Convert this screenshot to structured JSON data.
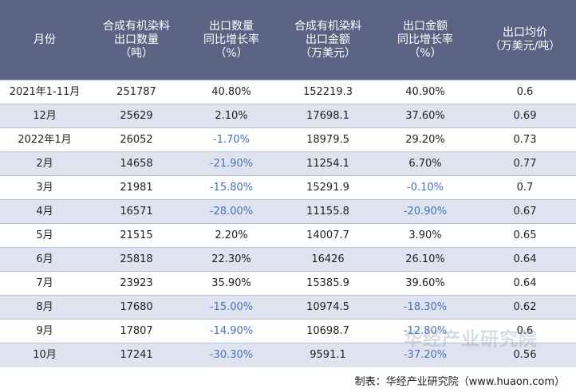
{
  "header": {
    "columns": [
      [
        "月份"
      ],
      [
        "合成有机染料",
        "出口数量",
        "（吨）"
      ],
      [
        "出口数量",
        "同比增长率",
        "（%）"
      ],
      [
        "合成有机染料",
        "出口金额",
        "（万美元）"
      ],
      [
        "出口金额",
        "同比增长率",
        "（%）"
      ],
      [
        "出口均价",
        "（万美元/吨）"
      ]
    ]
  },
  "rows": [
    [
      "2021年1-11月",
      "251787",
      "40.80%",
      "152219.3",
      "40.90%",
      "0.6"
    ],
    [
      "12月",
      "25629",
      "2.10%",
      "17698.1",
      "37.60%",
      "0.69"
    ],
    [
      "2022年1月",
      "26052",
      "-1.70%",
      "18979.5",
      "29.20%",
      "0.73"
    ],
    [
      "2月",
      "14658",
      "-21.90%",
      "11254.1",
      "6.70%",
      "0.77"
    ],
    [
      "3月",
      "21981",
      "-15.80%",
      "15291.9",
      "-0.10%",
      "0.7"
    ],
    [
      "4月",
      "16571",
      "-28.00%",
      "11155.8",
      "-20.90%",
      "0.67"
    ],
    [
      "5月",
      "21515",
      "2.20%",
      "14007.7",
      "3.90%",
      "0.65"
    ],
    [
      "6月",
      "25818",
      "22.30%",
      "16426",
      "26.10%",
      "0.64"
    ],
    [
      "7月",
      "23923",
      "35.90%",
      "15385.9",
      "39.60%",
      "0.64"
    ],
    [
      "8月",
      "17680",
      "-15.00%",
      "10974.5",
      "-18.30%",
      "0.62"
    ],
    [
      "9月",
      "17807",
      "-14.90%",
      "10698.7",
      "-12.80%",
      "0.6"
    ],
    [
      "10月",
      "17241",
      "-30.30%",
      "9591.1",
      "-37.20%",
      "0.56"
    ]
  ],
  "watermark": "华经产业研究院",
  "source": "制表：华经产业研究院（www.huaon.com）",
  "colors": {
    "header_bg": "#5a6384",
    "stripe": "#dee3ef",
    "negative": "#4a72b8"
  }
}
